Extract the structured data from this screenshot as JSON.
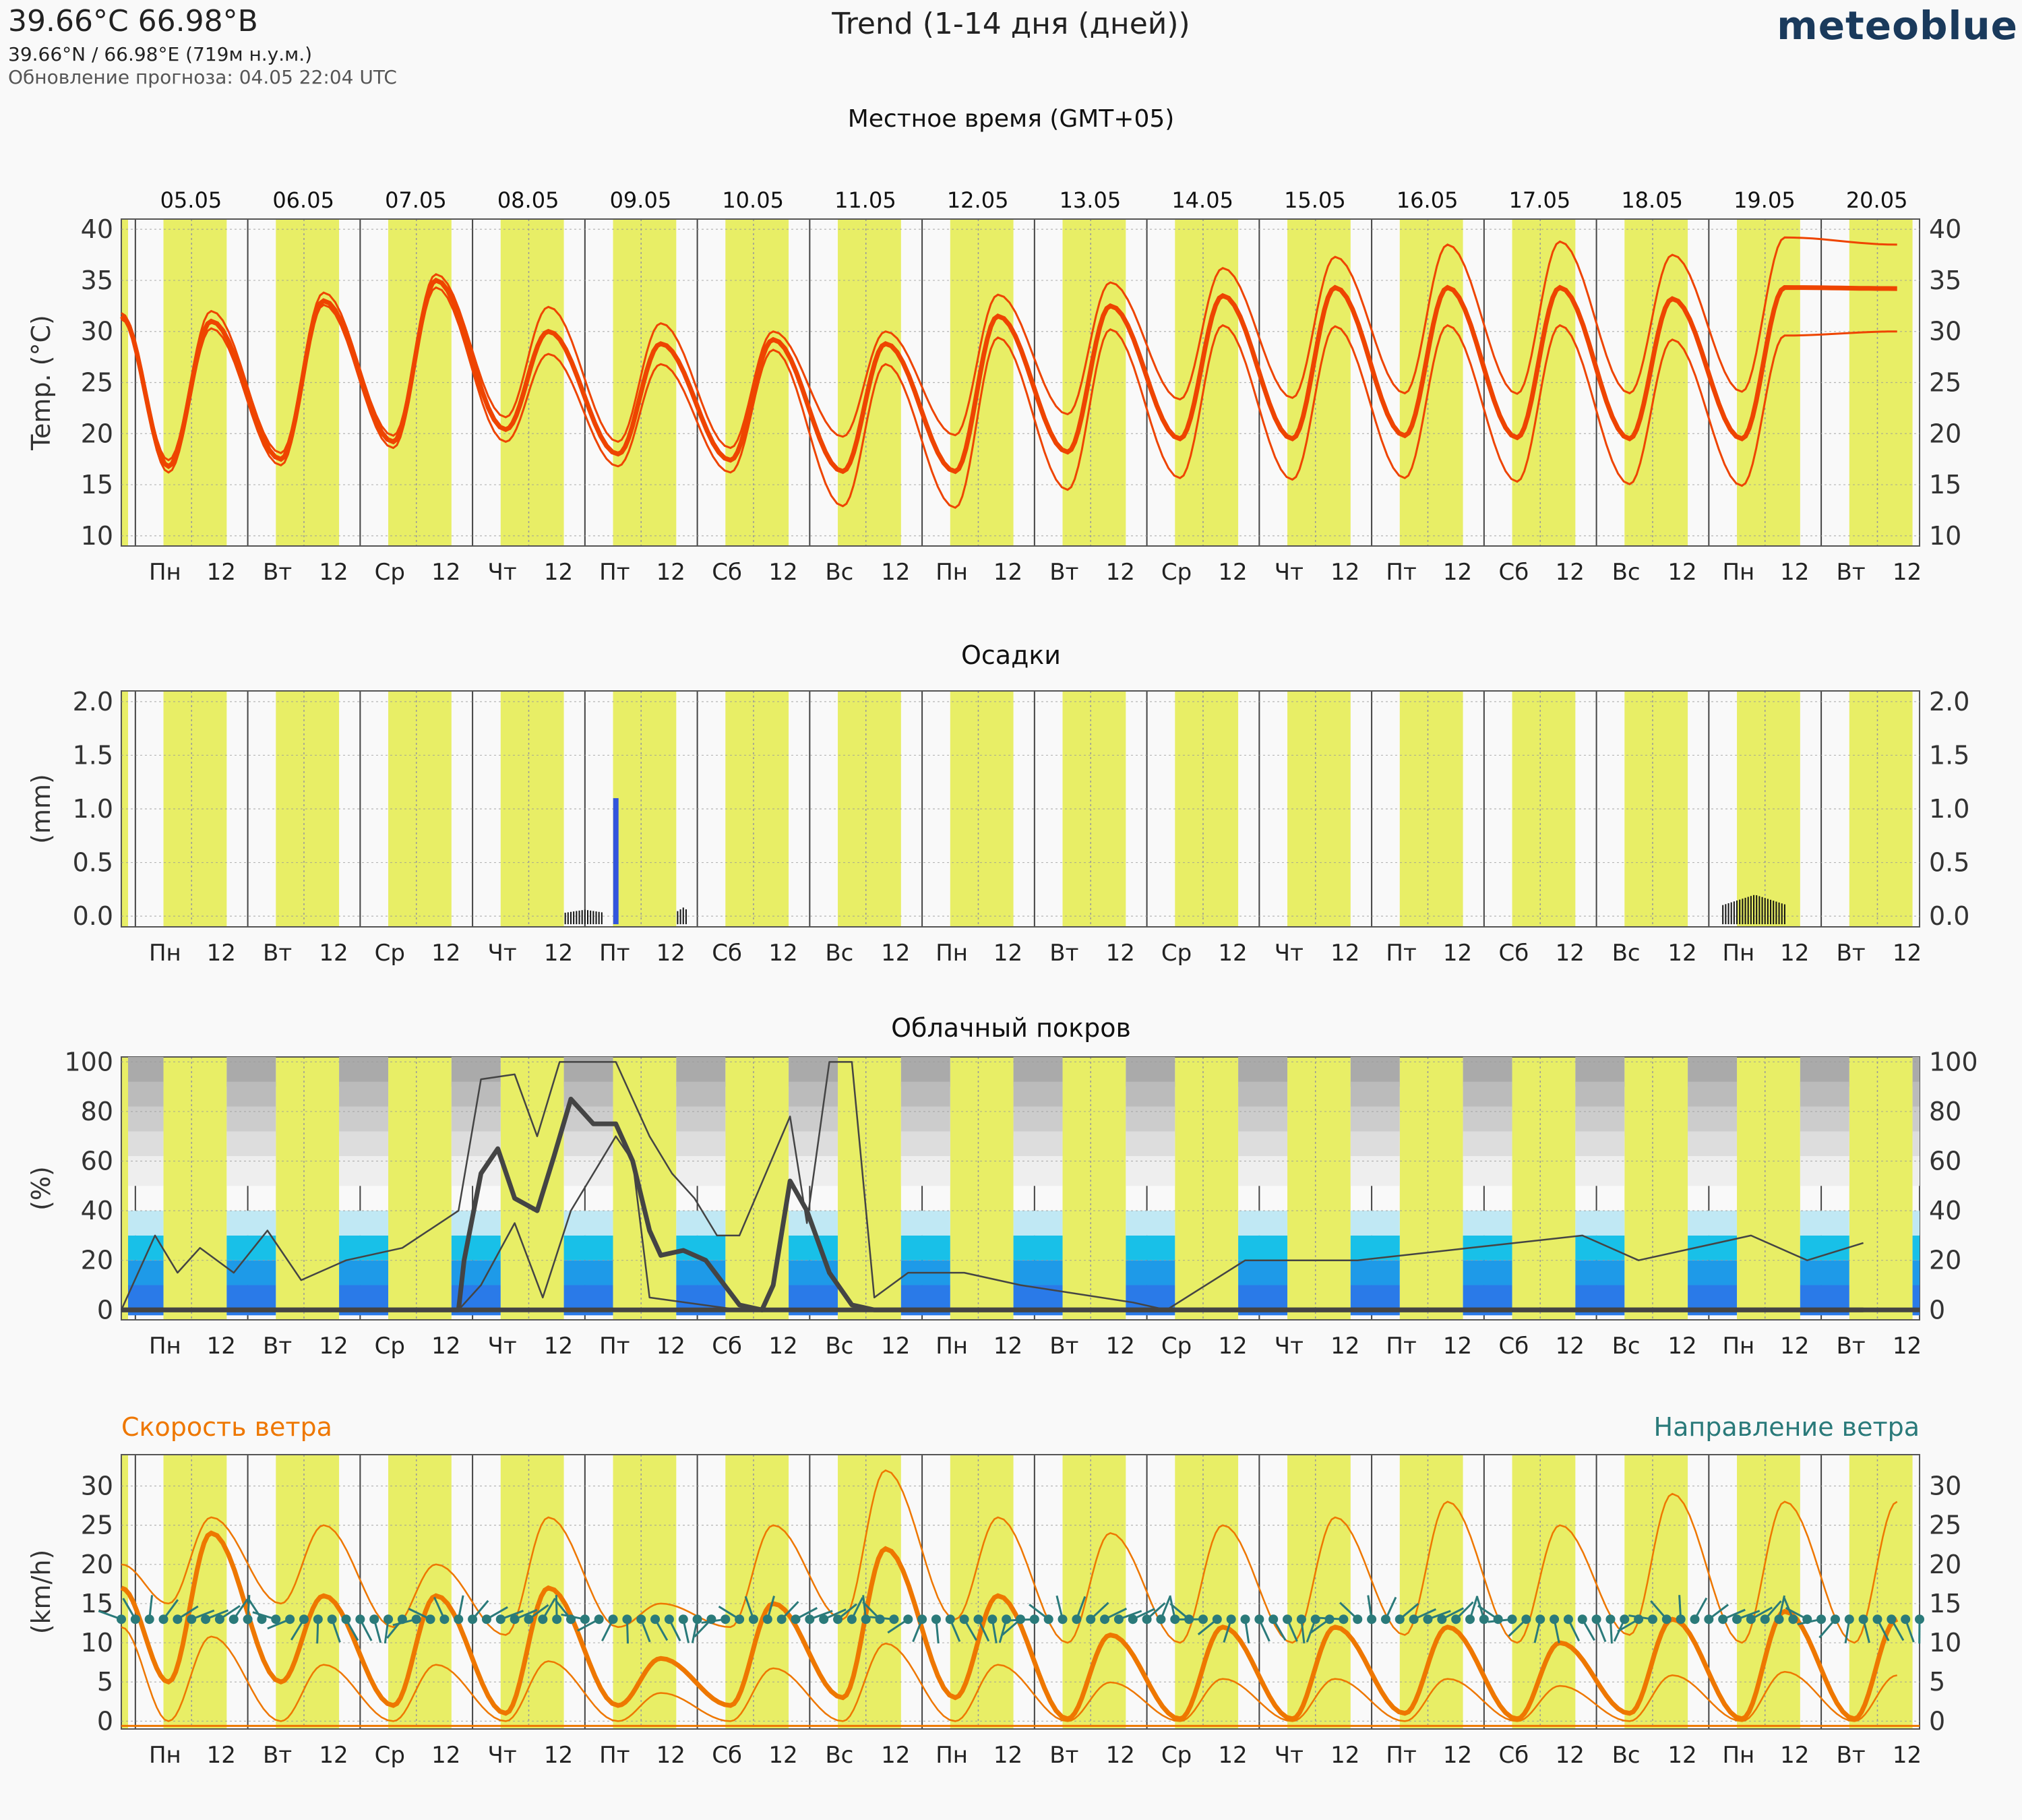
{
  "header": {
    "title": "39.66°С 66.98°В",
    "coords": "39.66°N / 66.98°E (719м н.у.м.)",
    "updated": "Обновление прогноза: 04.05 22:04 UTC",
    "center_title": "Trend (1-14 дня (дней))",
    "logo": "meteoblue"
  },
  "colors": {
    "day": "#e8ee66",
    "night": "#f9f9f9",
    "temp": "#ee4400",
    "precip": "#3355dd",
    "cloud_line": "#444444",
    "wind_speed": "#ee7700",
    "wind_dir": "#2a7a7a",
    "low_cloud": [
      "#2a7ae8",
      "#1e9ae8",
      "#18c0e8",
      "#c0e8f4"
    ],
    "high_cloud": [
      "#aaaaaa",
      "#bbbbbb",
      "#cccccc",
      "#dddddd",
      "#eeeeee"
    ]
  },
  "time_axis": {
    "local_time_label": "Местное время (GMT+05)",
    "dates": [
      "05.05",
      "06.05",
      "07.05",
      "08.05",
      "09.05",
      "10.05",
      "11.05",
      "12.05",
      "13.05",
      "14.05",
      "15.05",
      "16.05",
      "17.05",
      "18.05",
      "19.05",
      "20.05"
    ],
    "bottom_ticks": [
      "Пн",
      "12",
      "Вт",
      "12",
      "Ср",
      "12",
      "Чт",
      "12",
      "Пт",
      "12",
      "Сб",
      "12",
      "Вс",
      "12",
      "Пн",
      "12",
      "Вт",
      "12",
      "Ср",
      "12",
      "Чт",
      "12",
      "Пт",
      "12",
      "Сб",
      "12",
      "Вс",
      "12",
      "Пн",
      "12",
      "Вт",
      "12"
    ]
  },
  "chart_data": [
    {
      "type": "line",
      "title": "",
      "ylabel": "Temp. (°C)",
      "ylim": [
        9,
        41
      ],
      "yticks": [
        10,
        15,
        20,
        25,
        30,
        35,
        40
      ],
      "x_unit": "days since 04.05 21:00 local",
      "daily_min": [
        16.8,
        17.5,
        19.2,
        20.4,
        18.0,
        17.4,
        16.3,
        16.3,
        18.2,
        19.5,
        19.5,
        19.8,
        19.6,
        19.5,
        19.5
      ],
      "daily_max": [
        31.0,
        33.0,
        35.0,
        30.0,
        28.8,
        29.2,
        28.8,
        31.5,
        32.5,
        33.5,
        34.3,
        34.3,
        34.3,
        33.2,
        34.3,
        34.2
      ],
      "upper_max": [
        32.0,
        33.8,
        35.6,
        32.4,
        30.8,
        30.0,
        30.0,
        33.6,
        34.8,
        36.2,
        37.3,
        38.5,
        38.8,
        37.5,
        39.2,
        38.5
      ],
      "lower_max": [
        30.3,
        32.6,
        34.3,
        27.8,
        26.8,
        28.2,
        26.8,
        29.4,
        30.2,
        30.6,
        30.5,
        30.6,
        30.6,
        29.2,
        29.6,
        30.0
      ],
      "start_value": 31.5
    },
    {
      "type": "bar",
      "title": "Осадки",
      "ylabel": "(mm)",
      "ylim": [
        -0.1,
        2.1
      ],
      "yticks": [
        0.0,
        0.5,
        1.0,
        1.5,
        2.0
      ],
      "bars": [
        {
          "x": 4.08,
          "value": 0.1
        },
        {
          "x": 4.4,
          "value": 1.1
        },
        {
          "x": 5.0,
          "value": 0.1
        },
        {
          "x": 14.35,
          "value": 0.18
        },
        {
          "x": 14.5,
          "value": 0.22
        },
        {
          "x": 14.65,
          "value": 0.18
        }
      ]
    },
    {
      "type": "line",
      "title": "Облачный покров",
      "ylabel": "(%)",
      "ylim": [
        -4,
        102
      ],
      "yticks": [
        0,
        20,
        40,
        60,
        80,
        100
      ],
      "series": [
        {
          "role": "mean",
          "points": [
            [
              0,
              0
            ],
            [
              3,
              0
            ],
            [
              3.05,
              20
            ],
            [
              3.2,
              55
            ],
            [
              3.35,
              65
            ],
            [
              3.5,
              45
            ],
            [
              3.7,
              40
            ],
            [
              3.85,
              62
            ],
            [
              4.0,
              85
            ],
            [
              4.2,
              75
            ],
            [
              4.4,
              75
            ],
            [
              4.55,
              60
            ],
            [
              4.7,
              32
            ],
            [
              4.8,
              22
            ],
            [
              5.0,
              24
            ],
            [
              5.2,
              20
            ],
            [
              5.5,
              2
            ],
            [
              5.7,
              0
            ],
            [
              5.8,
              10
            ],
            [
              5.95,
              52
            ],
            [
              6.1,
              40
            ],
            [
              6.3,
              15
            ],
            [
              6.5,
              2
            ],
            [
              6.7,
              0
            ],
            [
              15.5,
              0
            ]
          ]
        },
        {
          "role": "upper",
          "points": [
            [
              0,
              0
            ],
            [
              0.3,
              30
            ],
            [
              0.5,
              15
            ],
            [
              0.7,
              25
            ],
            [
              1.0,
              15
            ],
            [
              1.3,
              32
            ],
            [
              1.6,
              12
            ],
            [
              2.0,
              20
            ],
            [
              2.5,
              25
            ],
            [
              3.0,
              40
            ],
            [
              3.2,
              93
            ],
            [
              3.5,
              95
            ],
            [
              3.7,
              70
            ],
            [
              3.9,
              100
            ],
            [
              4.4,
              100
            ],
            [
              4.7,
              70
            ],
            [
              4.9,
              55
            ],
            [
              5.1,
              45
            ],
            [
              5.3,
              30
            ],
            [
              5.5,
              30
            ],
            [
              5.95,
              78
            ],
            [
              6.1,
              35
            ],
            [
              6.3,
              100
            ],
            [
              6.5,
              100
            ],
            [
              6.7,
              5
            ],
            [
              7.0,
              15
            ],
            [
              7.5,
              15
            ],
            [
              8.0,
              10
            ],
            [
              9.0,
              3
            ],
            [
              9.3,
              0
            ],
            [
              10.0,
              20
            ],
            [
              11.0,
              20
            ],
            [
              12.0,
              25
            ],
            [
              13.0,
              30
            ],
            [
              13.5,
              20
            ],
            [
              14.5,
              30
            ],
            [
              15.0,
              20
            ],
            [
              15.5,
              27
            ]
          ]
        },
        {
          "role": "lower",
          "points": [
            [
              0,
              0
            ],
            [
              3.0,
              0
            ],
            [
              3.2,
              10
            ],
            [
              3.5,
              35
            ],
            [
              3.75,
              5
            ],
            [
              4.0,
              40
            ],
            [
              4.4,
              70
            ],
            [
              4.55,
              60
            ],
            [
              4.7,
              5
            ],
            [
              5.5,
              0
            ],
            [
              15.5,
              0
            ]
          ]
        }
      ]
    },
    {
      "type": "line",
      "title": "",
      "ylabel": "(km/h)",
      "legend_left": "Скорость ветра",
      "legend_right": "Направление ветра",
      "ylim": [
        -1,
        34
      ],
      "yticks": [
        0,
        5,
        10,
        15,
        20,
        25,
        30
      ],
      "daily_peak_mean": [
        24,
        16,
        16,
        17,
        8,
        15,
        22,
        16,
        11,
        12,
        12,
        12,
        10,
        13,
        14,
        13
      ],
      "daily_peak_upper": [
        26,
        25,
        20,
        26,
        15,
        25,
        32,
        26,
        24,
        25,
        26,
        28,
        25,
        29,
        28,
        28
      ],
      "daily_min_mean": [
        5,
        5,
        2,
        1,
        2,
        2,
        3,
        3,
        0,
        0,
        0,
        1,
        0,
        1,
        0,
        0
      ],
      "direction_row_value": 13
    }
  ]
}
